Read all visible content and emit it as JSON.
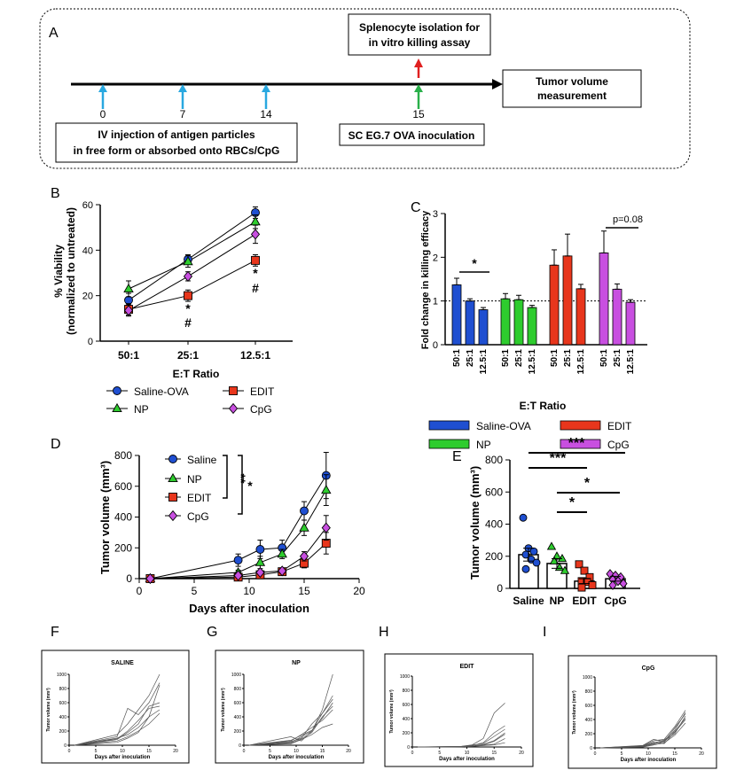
{
  "panelA": {
    "letter": "A",
    "day_labels": [
      "0",
      "7",
      "14",
      "15"
    ],
    "box_top_line1": "Splenocyte isolation for",
    "box_top_line2": "in vitro killing assay",
    "box_right_line1": "Tumor volume",
    "box_right_line2": "measurement",
    "box_left_line1": "IV injection of antigen particles",
    "box_left_line2": "in free form or absorbed onto RBCs/CpG",
    "box_mid": "SC EG.7 OVA inoculation"
  },
  "colors": {
    "saline": "#1f4fd1",
    "np": "#2ecc2e",
    "edit": "#e8361c",
    "cpg": "#c84fe0"
  },
  "chart_data": [
    {
      "panel": "B",
      "type": "line",
      "xlabel": "E:T Ratio",
      "ylabel_line1": "% Viability",
      "ylabel_line2": "(normalized to untreated)",
      "categories": [
        "50:1",
        "25:1",
        "12.5:1"
      ],
      "ylim": [
        0,
        60
      ],
      "yticks": [
        "0",
        "20",
        "40",
        "60"
      ],
      "series": [
        {
          "name": "Saline-OVA",
          "key": "saline",
          "marker": "circle",
          "values": [
            18,
            36,
            56.5
          ],
          "err": [
            3,
            2,
            2.5
          ]
        },
        {
          "name": "NP",
          "key": "np",
          "marker": "triangle",
          "values": [
            23,
            35,
            52.5
          ],
          "err": [
            3.5,
            2.5,
            3
          ]
        },
        {
          "name": "EDIT",
          "key": "edit",
          "marker": "square",
          "values": [
            14,
            20,
            35.5
          ],
          "err": [
            2.5,
            2.5,
            2.5
          ]
        },
        {
          "name": "CpG",
          "key": "cpg",
          "marker": "diamond",
          "values": [
            13.5,
            28.5,
            47
          ],
          "err": [
            2.5,
            2,
            4
          ]
        }
      ],
      "annotations": [
        "*",
        "#",
        "*",
        "#"
      ]
    },
    {
      "panel": "C",
      "type": "bar",
      "xlabel": "E:T Ratio",
      "ylabel": "Fold change in killing efficacy",
      "groups": [
        "Saline-OVA",
        "NP",
        "EDIT",
        "CpG"
      ],
      "group_keys": [
        "saline",
        "np",
        "edit",
        "cpg"
      ],
      "categories": [
        "50:1",
        "25:1",
        "12.5:1"
      ],
      "ylim": [
        0,
        3
      ],
      "yticks": [
        "0",
        "1",
        "2",
        "3"
      ],
      "values": [
        [
          1.37,
          1.0,
          0.8
        ],
        [
          1.05,
          1.03,
          0.85
        ],
        [
          1.82,
          2.03,
          1.28
        ],
        [
          2.1,
          1.27,
          0.97
        ]
      ],
      "err": [
        [
          0.15,
          0.05,
          0.05
        ],
        [
          0.12,
          0.1,
          0.05
        ],
        [
          0.35,
          0.5,
          0.1
        ],
        [
          0.5,
          0.12,
          0.06
        ]
      ],
      "reference_line": 1,
      "annotations": [
        "*",
        "p=0.08"
      ]
    },
    {
      "panel": "D",
      "type": "line",
      "xlabel": "Days after inoculation",
      "ylabel": "Tumor volume (mm³)",
      "xlim": [
        0,
        20
      ],
      "ylim": [
        0,
        800
      ],
      "xticks": [
        "0",
        "5",
        "10",
        "15",
        "20"
      ],
      "yticks": [
        "0",
        "200",
        "400",
        "600",
        "800"
      ],
      "x": [
        1,
        9,
        11,
        13,
        15,
        17
      ],
      "series": [
        {
          "name": "Saline",
          "key": "saline",
          "marker": "circle",
          "values": [
            0,
            120,
            190,
            200,
            440,
            670
          ],
          "err": [
            0,
            40,
            60,
            50,
            60,
            150
          ]
        },
        {
          "name": "NP",
          "key": "np",
          "marker": "triangle",
          "values": [
            0,
            40,
            105,
            160,
            330,
            575
          ],
          "err": [
            0,
            15,
            40,
            30,
            50,
            100
          ]
        },
        {
          "name": "EDIT",
          "key": "edit",
          "marker": "square",
          "values": [
            0,
            10,
            25,
            45,
            100,
            230
          ],
          "err": [
            0,
            5,
            10,
            15,
            30,
            70
          ]
        },
        {
          "name": "CpG",
          "key": "cpg",
          "marker": "diamond",
          "values": [
            0,
            20,
            40,
            50,
            145,
            330
          ],
          "err": [
            0,
            8,
            10,
            15,
            30,
            80
          ]
        }
      ],
      "annotations": [
        "**",
        "*"
      ]
    },
    {
      "panel": "E",
      "type": "bar",
      "ylabel": "Tumor volume (mm³)",
      "categories": [
        "Saline",
        "NP",
        "EDIT",
        "CpG"
      ],
      "keys": [
        "saline",
        "np",
        "edit",
        "cpg"
      ],
      "markers": [
        "circle",
        "triangle",
        "square",
        "diamond"
      ],
      "ylim": [
        0,
        800
      ],
      "yticks": [
        "0",
        "200",
        "400",
        "600",
        "800"
      ],
      "means": [
        210,
        155,
        45,
        60
      ],
      "err": [
        40,
        30,
        15,
        15
      ],
      "points": [
        [
          440,
          250,
          230,
          210,
          180,
          160,
          120
        ],
        [
          260,
          200,
          185,
          170,
          130,
          110
        ],
        [
          150,
          110,
          70,
          45,
          40,
          20,
          5
        ],
        [
          90,
          80,
          70,
          55,
          45,
          30,
          20
        ]
      ],
      "annotations": [
        "***",
        "***",
        "*",
        "*"
      ]
    },
    {
      "panel": "F",
      "type": "line",
      "title": "SALINE",
      "xlabel": "Days after inoculation",
      "ylabel": "Tumor volume (mm³)",
      "xlim": [
        0,
        20
      ],
      "ylim": [
        0,
        1000
      ],
      "xticks": [
        "0",
        "5",
        "10",
        "15",
        "20"
      ],
      "yticks": [
        "0",
        "200",
        "400",
        "600",
        "800",
        "1000"
      ],
      "x": [
        1,
        9,
        11,
        13,
        15,
        17
      ],
      "series": [
        [
          0,
          150,
          300,
          500,
          700,
          1000
        ],
        [
          0,
          120,
          520,
          430,
          600,
          880
        ],
        [
          0,
          80,
          180,
          300,
          550,
          600
        ],
        [
          0,
          100,
          150,
          250,
          400,
          850
        ],
        [
          0,
          60,
          120,
          200,
          300,
          450
        ],
        [
          0,
          90,
          200,
          350,
          520,
          550
        ],
        [
          0,
          40,
          100,
          180,
          400,
          500
        ]
      ]
    },
    {
      "panel": "G",
      "type": "line",
      "title": "NP",
      "xlabel": "Days after inoculation",
      "ylabel": "Tumor volume (mm³)",
      "xlim": [
        0,
        20
      ],
      "ylim": [
        0,
        1000
      ],
      "xticks": [
        "0",
        "5",
        "10",
        "15",
        "20"
      ],
      "yticks": [
        "0",
        "200",
        "400",
        "600",
        "800",
        "1000"
      ],
      "x": [
        1,
        9,
        11,
        13,
        15,
        17
      ],
      "series": [
        [
          0,
          120,
          60,
          200,
          500,
          1000
        ],
        [
          0,
          50,
          100,
          300,
          450,
          700
        ],
        [
          0,
          40,
          120,
          200,
          450,
          650
        ],
        [
          0,
          30,
          90,
          180,
          400,
          550
        ],
        [
          0,
          60,
          150,
          250,
          350,
          500
        ],
        [
          0,
          20,
          80,
          150,
          250,
          300
        ],
        [
          0,
          70,
          140,
          210,
          380,
          600
        ]
      ]
    },
    {
      "panel": "H",
      "type": "line",
      "title": "EDIT",
      "xlabel": "Days after inoculation",
      "ylabel": "Tumor volume (mm³)",
      "xlim": [
        0,
        20
      ],
      "ylim": [
        0,
        1000
      ],
      "xticks": [
        "0",
        "5",
        "10",
        "15",
        "20"
      ],
      "yticks": [
        "0",
        "200",
        "400",
        "600",
        "800",
        "1000"
      ],
      "x": [
        1,
        9,
        11,
        13,
        15,
        17
      ],
      "series": [
        [
          0,
          10,
          30,
          120,
          480,
          620
        ],
        [
          0,
          5,
          20,
          60,
          200,
          300
        ],
        [
          0,
          8,
          25,
          50,
          150,
          250
        ],
        [
          0,
          3,
          10,
          30,
          80,
          180
        ],
        [
          0,
          5,
          12,
          25,
          40,
          120
        ],
        [
          0,
          2,
          8,
          20,
          30,
          60
        ],
        [
          0,
          4,
          15,
          35,
          90,
          200
        ]
      ]
    },
    {
      "panel": "I",
      "type": "line",
      "title": "CpG",
      "xlabel": "Days after inoculation",
      "ylabel": "Tumor volume (mm³)",
      "xlim": [
        0,
        20
      ],
      "ylim": [
        0,
        1000
      ],
      "xticks": [
        "0",
        "5",
        "10",
        "15",
        "20"
      ],
      "yticks": [
        "0",
        "200",
        "400",
        "600",
        "800",
        "1000"
      ],
      "x": [
        1,
        9,
        11,
        13,
        15,
        17
      ],
      "series": [
        [
          0,
          30,
          100,
          120,
          300,
          530
        ],
        [
          0,
          20,
          60,
          80,
          250,
          500
        ],
        [
          0,
          15,
          50,
          100,
          200,
          450
        ],
        [
          0,
          25,
          80,
          60,
          220,
          400
        ],
        [
          0,
          10,
          40,
          70,
          180,
          350
        ],
        [
          0,
          35,
          120,
          90,
          280,
          480
        ],
        [
          0,
          20,
          70,
          110,
          230,
          420
        ]
      ]
    }
  ],
  "legendB": [
    {
      "name": "Saline-OVA",
      "key": "saline",
      "marker": "circle"
    },
    {
      "name": "EDIT",
      "key": "edit",
      "marker": "square"
    },
    {
      "name": "NP",
      "key": "np",
      "marker": "triangle"
    },
    {
      "name": "CpG",
      "key": "cpg",
      "marker": "diamond"
    }
  ],
  "legendC": [
    {
      "name": "Saline-OVA",
      "key": "saline"
    },
    {
      "name": "EDIT",
      "key": "edit"
    },
    {
      "name": "NP",
      "key": "np"
    },
    {
      "name": "CpG",
      "key": "cpg"
    }
  ],
  "legendD": [
    {
      "name": "Saline",
      "key": "saline",
      "marker": "circle"
    },
    {
      "name": "NP",
      "key": "np",
      "marker": "triangle"
    },
    {
      "name": "EDIT",
      "key": "edit",
      "marker": "square"
    },
    {
      "name": "CpG",
      "key": "cpg",
      "marker": "diamond"
    }
  ]
}
